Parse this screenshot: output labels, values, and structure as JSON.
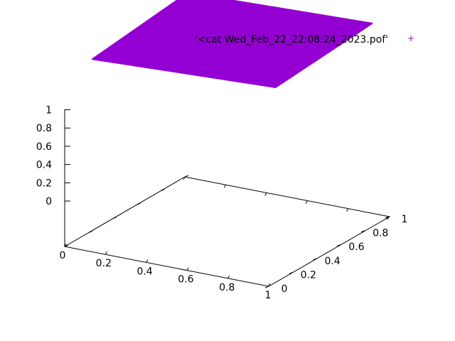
{
  "chart_data": {
    "type": "surface",
    "title": "",
    "xlabel": "",
    "ylabel": "",
    "zlabel": "",
    "xlim": [
      0,
      1
    ],
    "ylim": [
      0,
      1
    ],
    "zlim": [
      0,
      1
    ],
    "x_ticks": [
      "0",
      "0.2",
      "0.4",
      "0.6",
      "0.8",
      "1"
    ],
    "y_ticks": [
      "0",
      "0.2",
      "0.4",
      "0.6",
      "0.8",
      "1"
    ],
    "z_ticks": [
      "0",
      "0.2",
      "0.4",
      "0.6",
      "0.8",
      "1"
    ],
    "grid": false,
    "legend_position": "top-right",
    "series": [
      {
        "name": "'<cat Wed_Feb_22_22:08:24_2023.pof'",
        "color": "#9400d3",
        "marker": "+",
        "style": "filled surface",
        "z_level": 1.9
      }
    ]
  }
}
